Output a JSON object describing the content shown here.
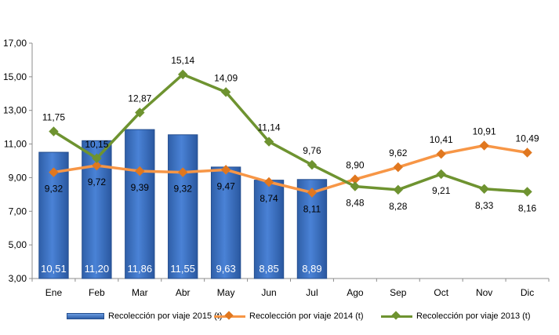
{
  "chart_data": {
    "type": "bar",
    "categories": [
      "Ene",
      "Feb",
      "Mar",
      "Abr",
      "May",
      "Jun",
      "Jul",
      "Ago",
      "Sep",
      "Oct",
      "Nov",
      "Dic"
    ],
    "ylim": [
      3,
      17
    ],
    "yticks": [
      "3,00",
      "5,00",
      "7,00",
      "9,00",
      "11,00",
      "13,00",
      "15,00",
      "17,00"
    ],
    "grid": false,
    "legend_position": "bottom",
    "series": [
      {
        "name": "Recolección por viaje 2015 (t)",
        "type": "bar",
        "color": "#3c70c4",
        "values": [
          10.51,
          11.2,
          11.86,
          11.55,
          9.63,
          8.85,
          8.89,
          null,
          null,
          null,
          null,
          null
        ],
        "labels": [
          "10,51",
          "11,20",
          "11,86",
          "11,55",
          "9,63",
          "8,85",
          "8,89",
          "",
          "",
          "",
          "",
          ""
        ]
      },
      {
        "name": "Recolección por viaje 2014 (t)",
        "type": "line",
        "color": "#f79646",
        "marker_color": "#e0771f",
        "values": [
          9.32,
          9.72,
          9.39,
          9.32,
          9.47,
          8.74,
          8.11,
          8.9,
          9.62,
          10.41,
          10.91,
          10.49
        ],
        "labels": [
          "9,32",
          "9,72",
          "9,39",
          "9,32",
          "9,47",
          "8,74",
          "8,11",
          "8,90",
          "9,62",
          "10,41",
          "10,91",
          "10,49"
        ]
      },
      {
        "name": "Recolección por viaje 2013 (t)",
        "type": "line",
        "color": "#6e9330",
        "marker_color": "#6e9330",
        "values": [
          11.75,
          10.15,
          12.87,
          15.14,
          14.09,
          11.14,
          9.76,
          8.48,
          8.28,
          9.21,
          8.33,
          8.16
        ],
        "labels": [
          "11,75",
          "10,15",
          "12,87",
          "15,14",
          "14,09",
          "11,14",
          "9,76",
          "8,48",
          "8,28",
          "9,21",
          "8,33",
          "8,16"
        ]
      }
    ]
  }
}
